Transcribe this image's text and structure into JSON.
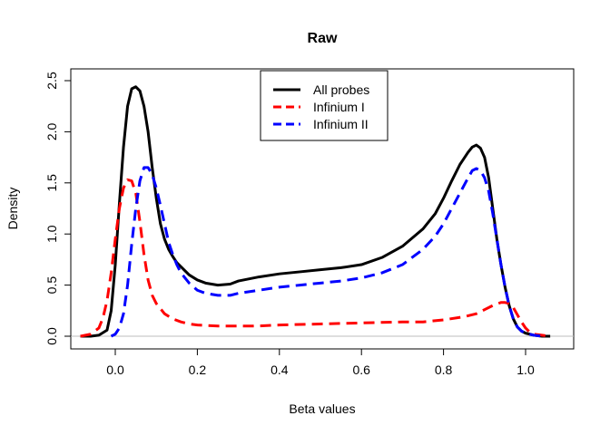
{
  "chart_data": {
    "type": "line",
    "title": "Raw",
    "xlabel": "Beta values",
    "ylabel": "Density",
    "xlim": [
      -0.1,
      1.1
    ],
    "ylim": [
      0,
      2.5
    ],
    "xticks": [
      0.0,
      0.2,
      0.4,
      0.6,
      0.8,
      1.0
    ],
    "yticks": [
      0.0,
      0.5,
      1.0,
      1.5,
      2.0,
      2.5
    ],
    "xtick_labels": [
      "0.0",
      "0.2",
      "0.4",
      "0.6",
      "0.8",
      "1.0"
    ],
    "ytick_labels": [
      "0.0",
      "0.5",
      "1.0",
      "1.5",
      "2.0",
      "2.5"
    ],
    "grid": false,
    "legend_position": "top-center",
    "baseline_color": "#bebebe",
    "series": [
      {
        "name": "All probes",
        "color": "#000000",
        "style": "solid",
        "x": [
          -0.085,
          -0.06,
          -0.04,
          -0.02,
          -0.01,
          0.0,
          0.01,
          0.02,
          0.03,
          0.04,
          0.05,
          0.06,
          0.07,
          0.08,
          0.09,
          0.1,
          0.11,
          0.12,
          0.13,
          0.14,
          0.15,
          0.16,
          0.18,
          0.2,
          0.22,
          0.25,
          0.28,
          0.3,
          0.35,
          0.4,
          0.45,
          0.5,
          0.55,
          0.6,
          0.65,
          0.7,
          0.75,
          0.78,
          0.8,
          0.82,
          0.84,
          0.86,
          0.87,
          0.88,
          0.89,
          0.9,
          0.91,
          0.92,
          0.93,
          0.94,
          0.95,
          0.96,
          0.97,
          0.98,
          0.99,
          1.0,
          1.01,
          1.02,
          1.04,
          1.06
        ],
        "values": [
          0.0,
          0.0,
          0.01,
          0.06,
          0.25,
          0.7,
          1.3,
          1.85,
          2.25,
          2.42,
          2.44,
          2.4,
          2.25,
          2.0,
          1.65,
          1.35,
          1.1,
          0.95,
          0.85,
          0.78,
          0.72,
          0.68,
          0.6,
          0.55,
          0.52,
          0.5,
          0.51,
          0.54,
          0.58,
          0.61,
          0.63,
          0.65,
          0.67,
          0.7,
          0.77,
          0.88,
          1.05,
          1.2,
          1.35,
          1.52,
          1.68,
          1.8,
          1.85,
          1.87,
          1.84,
          1.75,
          1.55,
          1.25,
          0.95,
          0.7,
          0.48,
          0.3,
          0.17,
          0.09,
          0.05,
          0.03,
          0.02,
          0.01,
          0.0,
          0.0
        ]
      },
      {
        "name": "Infinium I",
        "color": "#ff0000",
        "style": "dashed",
        "x": [
          -0.085,
          -0.06,
          -0.04,
          -0.03,
          -0.02,
          -0.01,
          0.0,
          0.01,
          0.02,
          0.03,
          0.04,
          0.05,
          0.06,
          0.07,
          0.08,
          0.09,
          0.1,
          0.12,
          0.14,
          0.16,
          0.18,
          0.2,
          0.25,
          0.3,
          0.35,
          0.4,
          0.5,
          0.6,
          0.7,
          0.75,
          0.8,
          0.85,
          0.88,
          0.9,
          0.92,
          0.94,
          0.95,
          0.96,
          0.97,
          0.98,
          0.99,
          1.0,
          1.01,
          1.02,
          1.04,
          1.06
        ],
        "values": [
          0.0,
          0.02,
          0.08,
          0.18,
          0.35,
          0.62,
          0.95,
          1.25,
          1.45,
          1.53,
          1.52,
          1.4,
          1.12,
          0.8,
          0.55,
          0.4,
          0.32,
          0.22,
          0.17,
          0.14,
          0.12,
          0.11,
          0.1,
          0.1,
          0.1,
          0.11,
          0.12,
          0.13,
          0.14,
          0.14,
          0.16,
          0.19,
          0.22,
          0.26,
          0.3,
          0.33,
          0.33,
          0.32,
          0.28,
          0.21,
          0.14,
          0.08,
          0.04,
          0.02,
          0.01,
          0.0
        ]
      },
      {
        "name": "Infinium II",
        "color": "#0000ff",
        "style": "dashed",
        "x": [
          -0.01,
          0.0,
          0.01,
          0.02,
          0.03,
          0.04,
          0.05,
          0.06,
          0.07,
          0.08,
          0.09,
          0.1,
          0.11,
          0.12,
          0.13,
          0.14,
          0.15,
          0.16,
          0.18,
          0.2,
          0.22,
          0.25,
          0.28,
          0.3,
          0.35,
          0.4,
          0.45,
          0.5,
          0.55,
          0.6,
          0.65,
          0.7,
          0.75,
          0.78,
          0.8,
          0.82,
          0.84,
          0.86,
          0.87,
          0.88,
          0.89,
          0.9,
          0.91,
          0.92,
          0.93,
          0.94,
          0.95,
          0.96,
          0.97,
          0.98,
          0.99,
          1.0,
          1.01,
          1.02,
          1.04
        ],
        "values": [
          0.0,
          0.02,
          0.08,
          0.22,
          0.5,
          0.9,
          1.25,
          1.52,
          1.65,
          1.65,
          1.58,
          1.45,
          1.28,
          1.1,
          0.92,
          0.8,
          0.7,
          0.62,
          0.52,
          0.45,
          0.42,
          0.4,
          0.4,
          0.42,
          0.45,
          0.48,
          0.5,
          0.52,
          0.54,
          0.57,
          0.62,
          0.7,
          0.85,
          0.98,
          1.1,
          1.25,
          1.4,
          1.55,
          1.62,
          1.64,
          1.62,
          1.55,
          1.42,
          1.2,
          0.95,
          0.7,
          0.48,
          0.3,
          0.17,
          0.09,
          0.05,
          0.03,
          0.02,
          0.01,
          0.0
        ]
      }
    ]
  }
}
